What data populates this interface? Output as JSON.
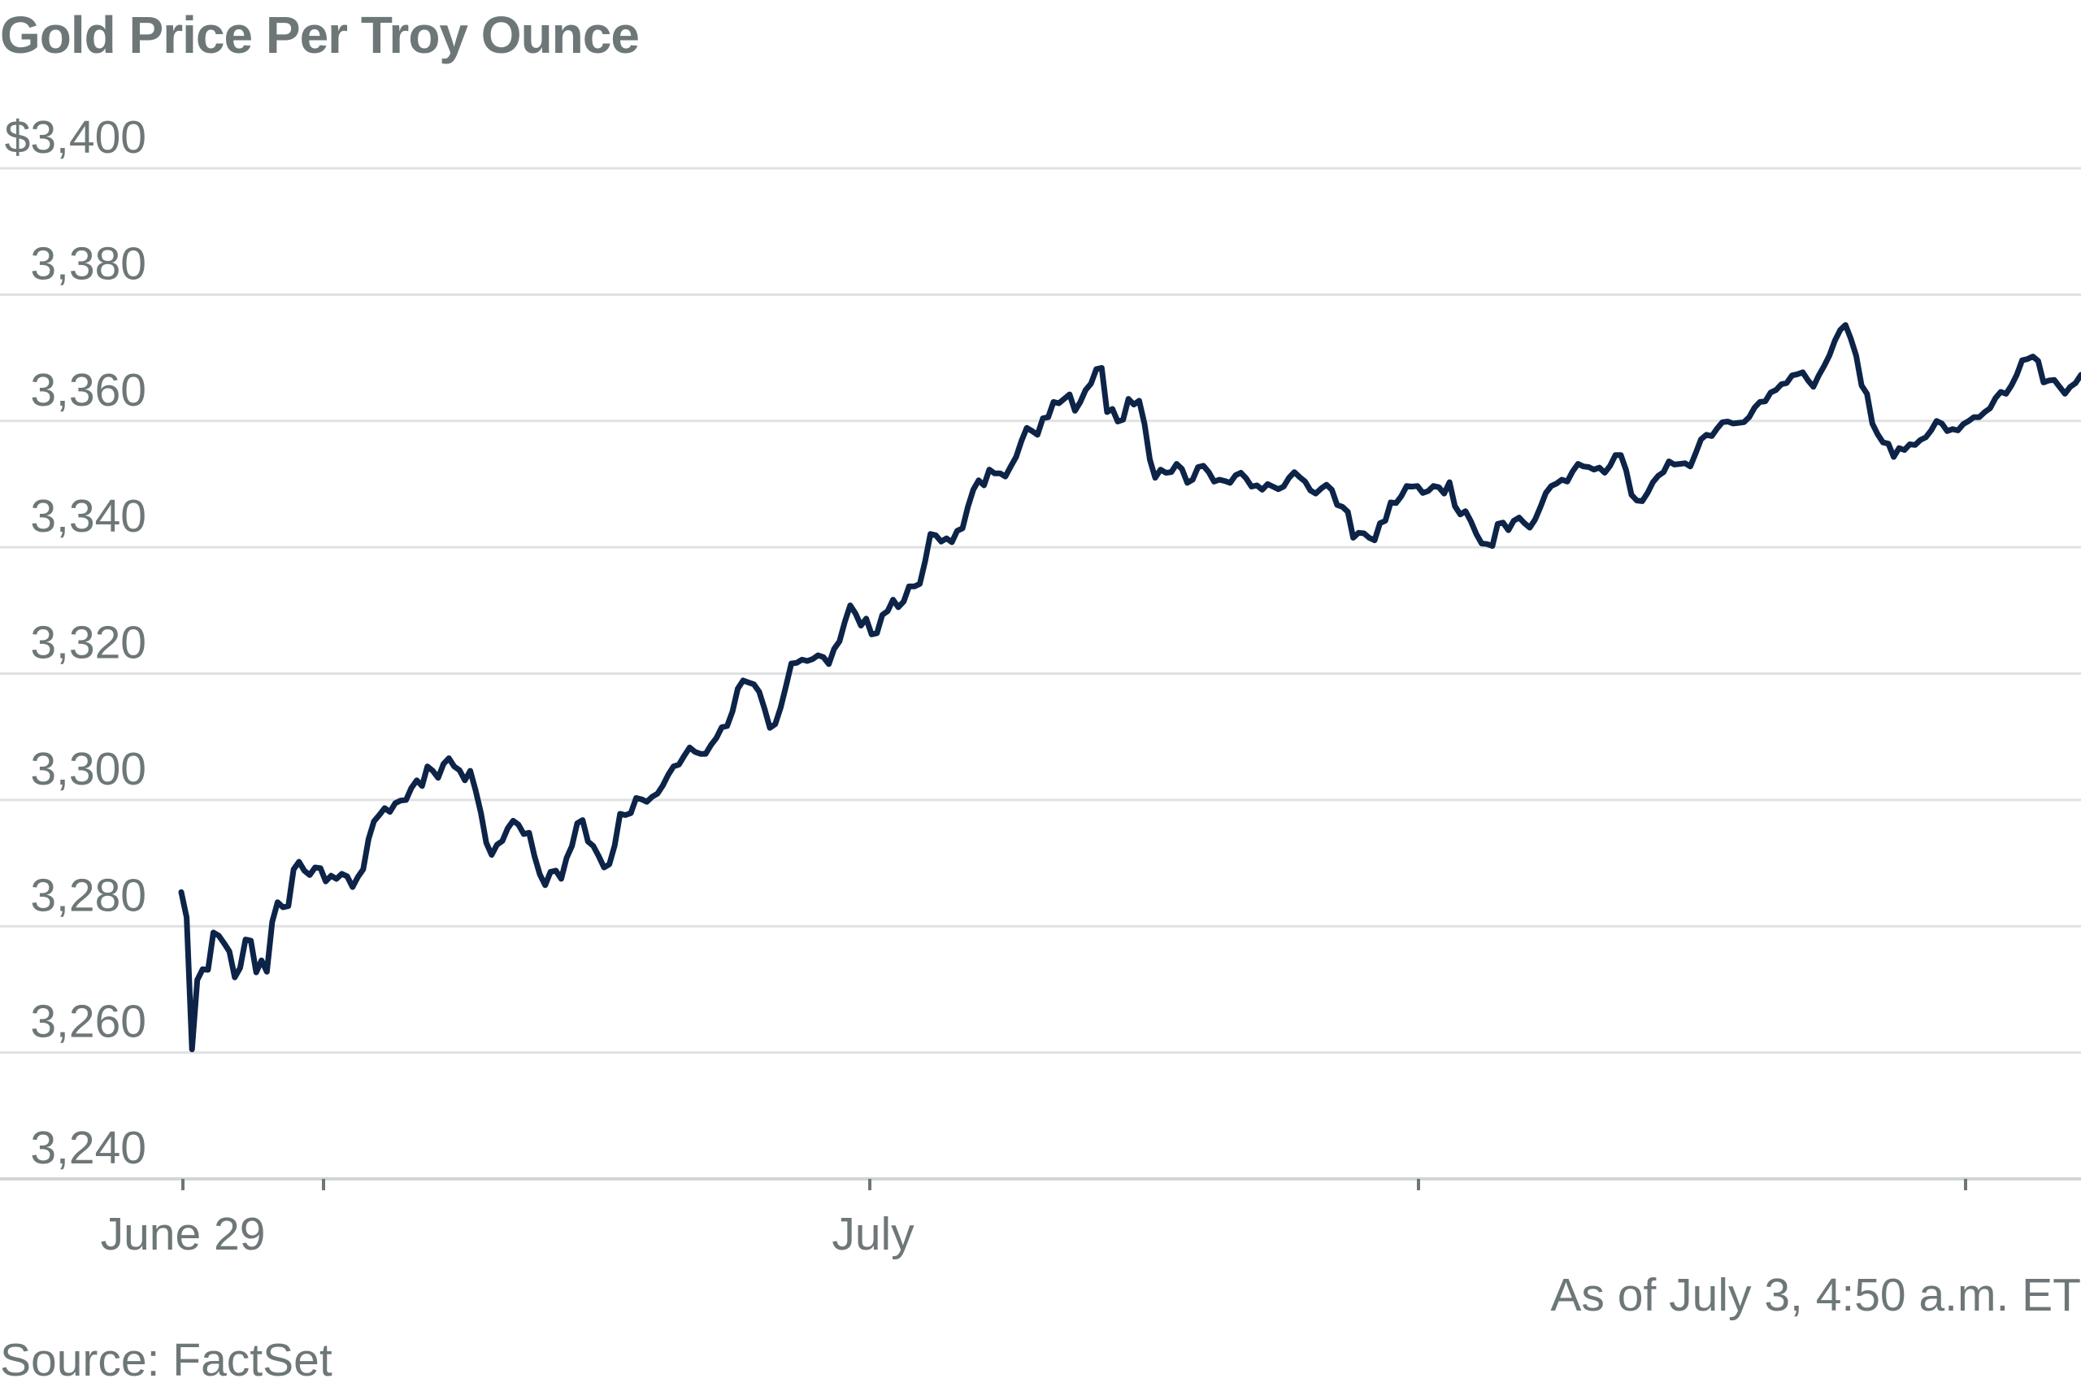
{
  "chart_data": {
    "type": "line",
    "title": "Gold Price Per Troy Ounce",
    "xlabel": "",
    "ylabel": "",
    "y_tick_labels": [
      "$3,400",
      "3,380",
      "3,360",
      "3,340",
      "3,320",
      "3,300",
      "3,280",
      "3,260",
      "3,240"
    ],
    "y_ticks": [
      3400,
      3380,
      3360,
      3340,
      3320,
      3300,
      3280,
      3260,
      3240
    ],
    "ylim": [
      3240,
      3400
    ],
    "x_tick_labels": [
      "June 29",
      "July"
    ],
    "grid": "horizontal",
    "line_color": "#0d2448",
    "series": [
      {
        "values": [
          3285.4,
          3281.4,
          3260.5,
          3271.5,
          3273.2,
          3273.1,
          3279.0,
          3278.5,
          3277.3,
          3276.0,
          3271.9,
          3273.4,
          3277.9,
          3277.7,
          3272.7,
          3274.6,
          3272.8,
          3280.7,
          3283.8,
          3283.0,
          3283.2,
          3289.0,
          3290.2,
          3288.8,
          3288.1,
          3289.3,
          3289.2,
          3287.1,
          3288.0,
          3287.5,
          3288.3,
          3287.9,
          3286.2,
          3287.8,
          3289.0,
          3293.8,
          3296.6,
          3297.6,
          3298.7,
          3298.1,
          3299.5,
          3299.9,
          3300.0,
          3301.9,
          3303.1,
          3302.2,
          3305.3,
          3304.6,
          3303.5,
          3305.7,
          3306.6,
          3305.3,
          3304.7,
          3303.1,
          3304.6,
          3301.5,
          3297.9,
          3293.2,
          3291.3,
          3292.9,
          3293.5,
          3295.5,
          3296.7,
          3296.1,
          3294.6,
          3294.8,
          3291.1,
          3288.2,
          3286.5,
          3288.6,
          3288.8,
          3287.5,
          3290.8,
          3292.7,
          3296.3,
          3296.8,
          3293.4,
          3292.7,
          3291.1,
          3289.3,
          3289.8,
          3292.8,
          3297.8,
          3297.6,
          3297.9,
          3300.3,
          3300.1,
          3299.7,
          3300.5,
          3301.0,
          3302.3,
          3304.0,
          3305.3,
          3305.6,
          3307.0,
          3308.3,
          3307.6,
          3307.3,
          3307.3,
          3308.7,
          3309.8,
          3311.5,
          3311.7,
          3314.0,
          3317.6,
          3318.9,
          3318.6,
          3318.3,
          3317.1,
          3314.4,
          3311.4,
          3312.0,
          3314.6,
          3318.0,
          3321.6,
          3321.7,
          3322.2,
          3322.0,
          3322.3,
          3322.9,
          3322.6,
          3321.5,
          3323.9,
          3325.1,
          3328.2,
          3330.8,
          3329.5,
          3327.6,
          3328.7,
          3326.2,
          3326.4,
          3329.3,
          3329.9,
          3331.7,
          3330.5,
          3331.4,
          3333.8,
          3333.8,
          3334.2,
          3337.8,
          3342.1,
          3341.9,
          3340.9,
          3341.4,
          3340.8,
          3342.6,
          3343.0,
          3346.4,
          3349.1,
          3350.6,
          3349.8,
          3352.3,
          3351.7,
          3351.7,
          3351.2,
          3352.8,
          3354.3,
          3356.8,
          3358.9,
          3358.4,
          3357.8,
          3360.4,
          3360.6,
          3363.0,
          3362.8,
          3363.5,
          3364.2,
          3361.6,
          3363.0,
          3364.9,
          3365.9,
          3368.2,
          3368.4,
          3361.4,
          3361.9,
          3359.9,
          3360.2,
          3363.5,
          3362.6,
          3363.2,
          3359.5,
          3353.9,
          3351.0,
          3352.3,
          3351.8,
          3351.9,
          3353.2,
          3352.4,
          3350.2,
          3350.7,
          3352.7,
          3352.9,
          3351.9,
          3350.4,
          3350.7,
          3350.5,
          3350.2,
          3351.4,
          3351.8,
          3350.9,
          3349.6,
          3349.8,
          3349.1,
          3350.0,
          3349.6,
          3349.2,
          3349.6,
          3351.0,
          3351.9,
          3351.1,
          3350.4,
          3349.0,
          3348.5,
          3349.3,
          3349.9,
          3349.1,
          3346.7,
          3346.4,
          3345.6,
          3341.5,
          3342.3,
          3342.2,
          3341.5,
          3341.1,
          3343.8,
          3344.2,
          3347.1,
          3347.0,
          3348.1,
          3349.7,
          3349.6,
          3349.7,
          3348.6,
          3348.9,
          3349.7,
          3349.5,
          3348.5,
          3350.3,
          3346.5,
          3345.2,
          3345.7,
          3344.1,
          3342.1,
          3340.6,
          3340.5,
          3340.2,
          3343.7,
          3343.9,
          3342.7,
          3344.2,
          3344.7,
          3343.8,
          3343.1,
          3344.4,
          3346.4,
          3348.6,
          3349.7,
          3350.1,
          3350.7,
          3350.4,
          3352.0,
          3353.2,
          3352.8,
          3352.7,
          3352.3,
          3352.6,
          3351.8,
          3352.9,
          3354.6,
          3354.6,
          3352.2,
          3348.3,
          3347.4,
          3347.3,
          3348.6,
          3350.3,
          3351.3,
          3351.9,
          3353.6,
          3353.1,
          3353.2,
          3353.3,
          3352.8,
          3354.9,
          3357.1,
          3357.8,
          3357.6,
          3358.8,
          3359.8,
          3359.9,
          3359.6,
          3359.7,
          3359.8,
          3360.6,
          3362.1,
          3363.0,
          3363.1,
          3364.5,
          3364.9,
          3365.8,
          3366.0,
          3367.2,
          3367.4,
          3367.7,
          3366.4,
          3365.4,
          3367.2,
          3368.7,
          3370.4,
          3372.7,
          3374.4,
          3375.2,
          3373.0,
          3370.3,
          3365.6,
          3364.3,
          3359.6,
          3357.9,
          3356.6,
          3356.4,
          3354.3,
          3355.7,
          3355.4,
          3356.3,
          3356.2,
          3357.0,
          3357.4,
          3358.5,
          3360.0,
          3359.6,
          3358.4,
          3358.7,
          3358.5,
          3359.5,
          3360.0,
          3360.6,
          3360.6,
          3361.4,
          3362.0,
          3363.6,
          3364.6,
          3364.3,
          3365.6,
          3367.3,
          3369.6,
          3369.8,
          3370.2,
          3369.5,
          3366.1,
          3366.4,
          3366.5,
          3365.4,
          3364.3,
          3365.4,
          3366.0,
          3367.3
        ]
      }
    ]
  },
  "footer": {
    "as_of": "As of July 3, 4:50 a.m. ET",
    "source": "Source: FactSet"
  }
}
